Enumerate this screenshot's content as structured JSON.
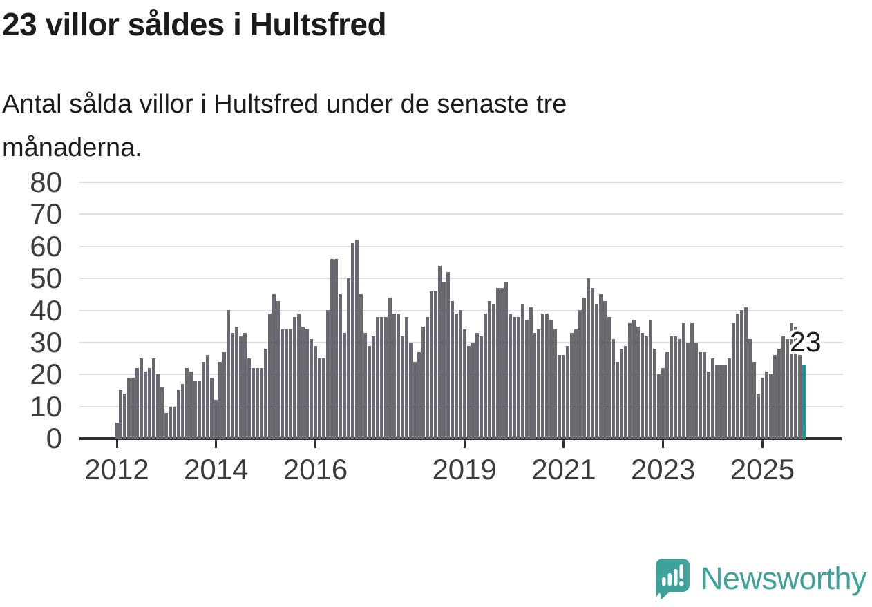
{
  "header": {
    "title": "23 villor såldes i Hultsfred",
    "subtitle": "Antal sålda villor i Hultsfred under de senaste tre månaderna."
  },
  "chart_data": {
    "type": "bar",
    "x_unit": "month",
    "x_start": "2012-01",
    "x_end": "2025-11",
    "ylim": [
      0,
      80
    ],
    "grid": true,
    "y_ticks": [
      0,
      10,
      20,
      30,
      40,
      50,
      60,
      70,
      80
    ],
    "x_ticks": [
      {
        "label": "2012",
        "month_index": 0
      },
      {
        "label": "2014",
        "month_index": 24
      },
      {
        "label": "2016",
        "month_index": 48
      },
      {
        "label": "2019",
        "month_index": 84
      },
      {
        "label": "2021",
        "month_index": 108
      },
      {
        "label": "2023",
        "month_index": 132
      },
      {
        "label": "2025",
        "month_index": 156
      }
    ],
    "values": [
      5,
      15,
      14,
      19,
      19,
      22,
      25,
      21,
      22,
      25,
      20,
      16,
      8,
      10,
      10,
      15,
      17,
      22,
      21,
      18,
      18,
      24,
      26,
      19,
      12,
      24,
      27,
      40,
      33,
      35,
      32,
      33,
      25,
      22,
      22,
      22,
      28,
      39,
      45,
      43,
      34,
      34,
      34,
      38,
      39,
      35,
      34,
      31,
      29,
      25,
      25,
      40,
      56,
      56,
      45,
      33,
      50,
      61,
      62,
      45,
      33,
      29,
      32,
      38,
      38,
      38,
      44,
      39,
      39,
      32,
      38,
      30,
      24,
      27,
      35,
      38,
      46,
      46,
      54,
      49,
      52,
      43,
      39,
      40,
      34,
      29,
      30,
      33,
      32,
      39,
      43,
      42,
      47,
      47,
      49,
      39,
      38,
      38,
      42,
      37,
      41,
      33,
      34,
      39,
      39,
      37,
      34,
      26,
      26,
      29,
      33,
      34,
      40,
      44,
      50,
      47,
      42,
      45,
      43,
      38,
      31,
      24,
      28,
      29,
      36,
      37,
      35,
      33,
      32,
      37,
      28,
      20,
      22,
      27,
      32,
      32,
      31,
      36,
      30,
      36,
      30,
      27,
      27,
      21,
      25,
      23,
      23,
      23,
      25,
      36,
      39,
      40,
      41,
      31,
      24,
      14,
      19,
      21,
      20,
      26,
      28,
      32,
      31,
      36,
      35,
      26,
      23
    ],
    "highlight": {
      "index": 166,
      "label": "23"
    }
  },
  "colors": {
    "bar": "#6a6870",
    "highlight": "#0c9b9c",
    "grid": "#dedede",
    "axis": "#2e2e2e",
    "text": "#1c1c1c",
    "brand": "#3ea29b"
  },
  "footer": {
    "brand": "Newsworthy"
  }
}
